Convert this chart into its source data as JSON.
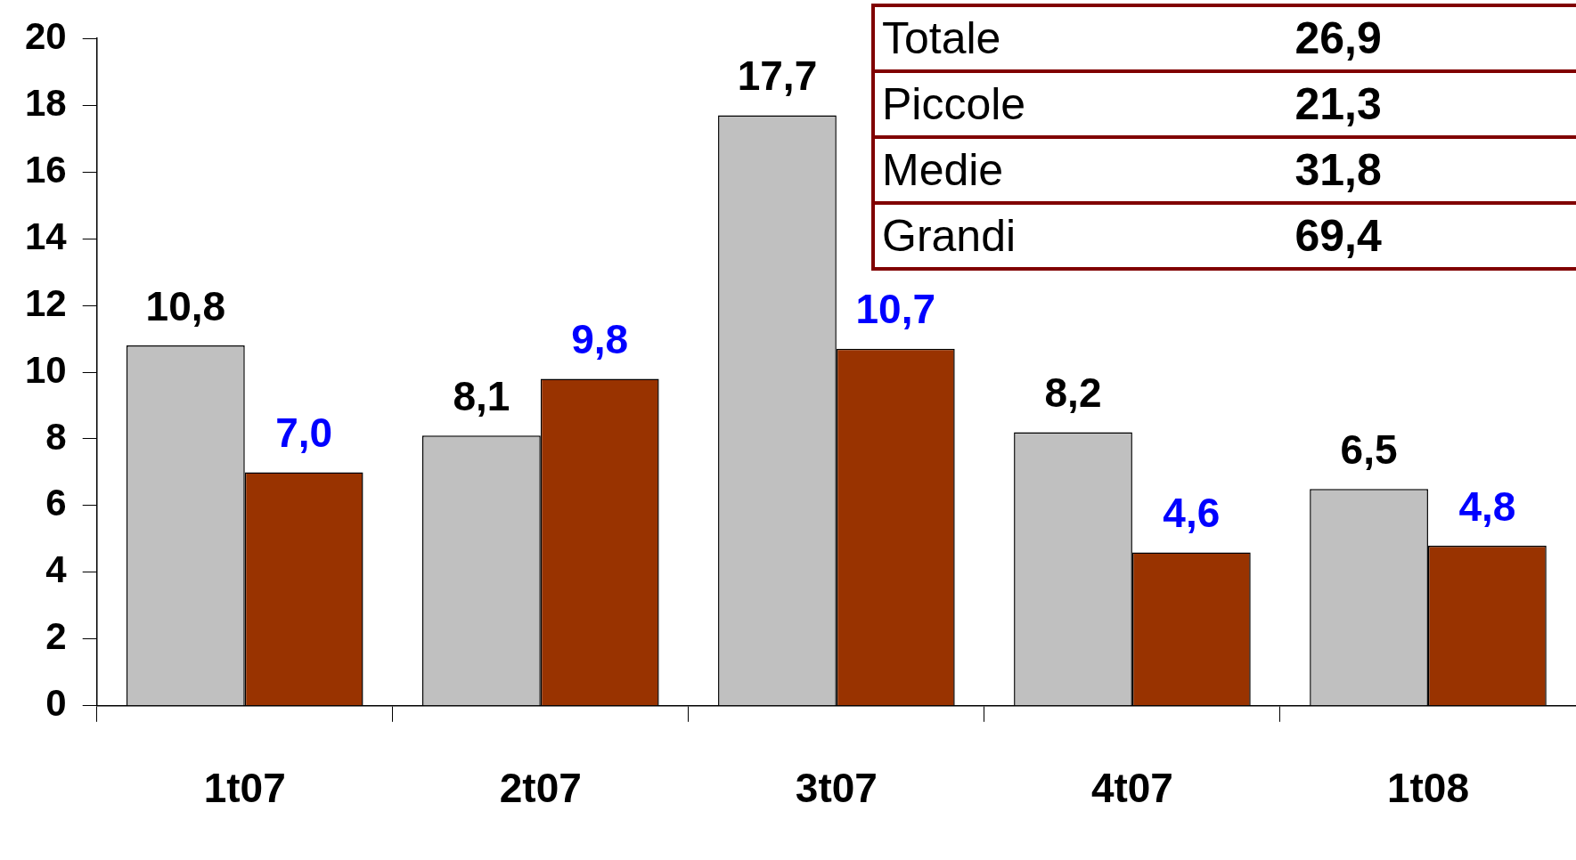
{
  "chart_data": {
    "type": "bar",
    "categories": [
      "1t07",
      "2t07",
      "3t07",
      "4t07",
      "1t08"
    ],
    "series": [
      {
        "color": "#c0c0c0",
        "values": [
          10.8,
          8.1,
          17.7,
          8.2,
          6.5
        ],
        "value_labels": [
          "10,8",
          "8,1",
          "17,7",
          "8,2",
          "6,5"
        ]
      },
      {
        "color": "#993300",
        "values": [
          7.0,
          9.8,
          10.7,
          4.6,
          4.8
        ],
        "value_labels": [
          "7,0",
          "9,8",
          "10,7",
          "4,6",
          "4,8"
        ]
      }
    ],
    "ylim": [
      0,
      20
    ],
    "yticks": [
      0,
      2,
      4,
      6,
      8,
      10,
      12,
      14,
      16,
      18,
      20
    ],
    "grid": false,
    "legend": false,
    "annotations": [
      "Totale",
      "26,9",
      "Piccole",
      "21,3",
      "Medie",
      "31,8",
      "Grandi",
      "69,4"
    ]
  }
}
